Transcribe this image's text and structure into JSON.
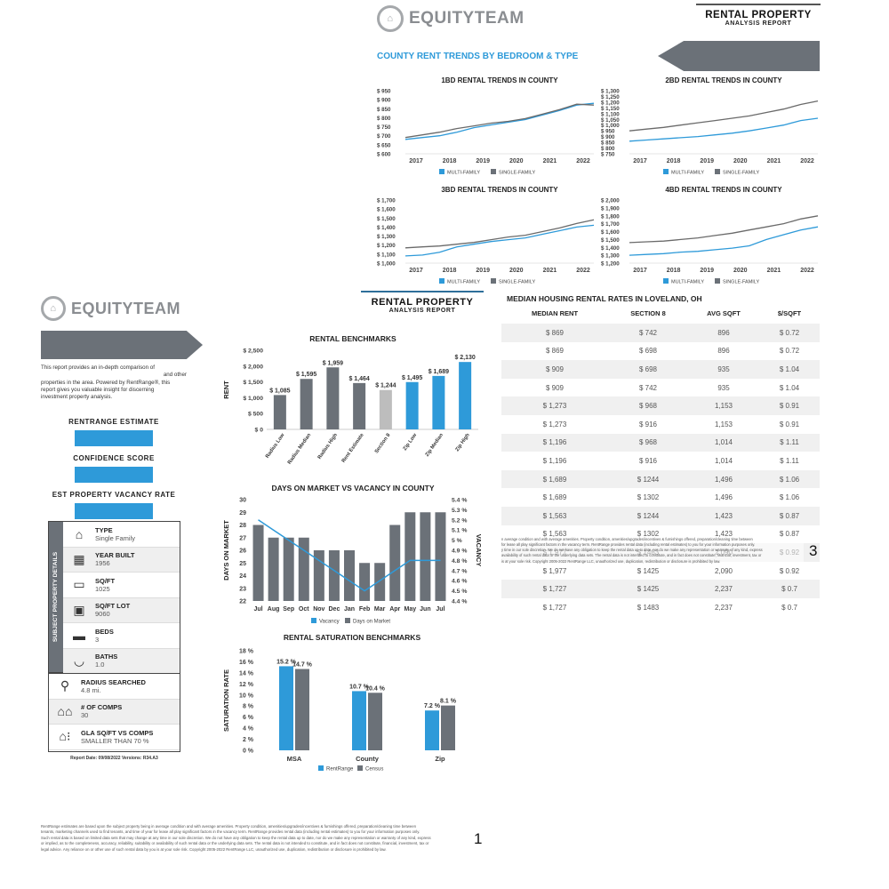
{
  "page1": {
    "logo_text": "EQUITYTEAM",
    "title": "RENTAL PROPERTY",
    "subtitle": "ANALYSIS REPORT",
    "intro": "This report provides an in-depth comparison of and other properties in the area. Powered by RentRange®, this report gives you valuable insight for discerning investment property analysis.",
    "intro_line1": "This report provides an in-depth comparison of",
    "intro_line2": "and other",
    "intro_line3": "properties in the area. Powered by RentRange®, this",
    "intro_line4": "report gives you valuable insight for discerning",
    "intro_line5": "investment property analysis.",
    "rentrange_label": "RENTRANGE ESTIMATE",
    "confidence_label": "CONFIDENCE SCORE",
    "vacancy_label": "EST PROPERTY VACANCY RATE",
    "details_side_label": "SUBJECT PROPERTY DETAILS",
    "details": [
      {
        "icon": "house-icon",
        "label": "TYPE",
        "value": "Single Family"
      },
      {
        "icon": "calendar-icon",
        "label": "YEAR BUILT",
        "value": "1956"
      },
      {
        "icon": "floorplan-icon",
        "label": "SQ/FT",
        "value": "1025"
      },
      {
        "icon": "lot-icon",
        "label": "SQ/FT LOT",
        "value": "9060"
      },
      {
        "icon": "bed-icon",
        "label": "BEDS",
        "value": "3"
      },
      {
        "icon": "bathtub-icon",
        "label": "BATHS",
        "value": "1.0"
      }
    ],
    "extra": [
      {
        "icon": "magnifier-icon",
        "label": "RADIUS SEARCHED",
        "value": "4.8 mi."
      },
      {
        "icon": "houses-icon",
        "label": "# OF COMPS",
        "value": "30"
      },
      {
        "icon": "gla-compare-icon",
        "label": "GLA SQ/FT VS COMPS",
        "value": "SMALLER THAN 70 %"
      }
    ],
    "report_date": "Report Date: 09/08/2022 Versions: R34.A3",
    "page_number": "1",
    "disclaimer_line1": "RentRange estimates are based upon the subject property being in average condition and with average amenities. Property condition, amenities/upgrades/incentives & furnishings offered, preparation/cleaning time between",
    "disclaimer_line2": "tenants, marketing channels used to find tenants, and time of year for lease all play significant factors in the vacancy term. RentRange provides rental data (including rental estimates) to you for your information purposes only.",
    "disclaimer_line3": "Such rental data is based on limited data sets that may change at any time in our sole discretion. We do not have any obligation to keep the rental data up to date, nor do we make any representation or warranty of any kind, express",
    "disclaimer_line4": "or implied, as to the completeness, accuracy, reliability, suitability or availability of such rental data or the underlying data sets. The rental data is not intended to constitute, and in fact does not constitute, financial, investment, tax or",
    "disclaimer_line5": "legal advice. Any reliance on or other use of such rental data by you is at your sole risk. Copyright 2005-2022 RentRange LLC, unauthorized use, duplication, redistribution or disclosure is prohibited by law."
  },
  "page2": {
    "title": "RENTAL PROPERTY",
    "subtitle": "ANALYSIS REPORT"
  },
  "page3": {
    "logo_text": "EQUITYTEAM",
    "title": "RENTAL PROPERTY",
    "subtitle": "ANALYSIS REPORT",
    "section_title": "COUNTY RENT TRENDS BY BEDROOM & TYPE",
    "median_title": "MEDIAN HOUSING RENTAL RATES IN LOVELAND, OH",
    "median_headers": [
      "MEDIAN RENT",
      "SECTION 8",
      "AVG SQFT",
      "$/SQFT"
    ],
    "median_rows": [
      [
        "$ 869",
        "$ 742",
        "896",
        "$ 0.72"
      ],
      [
        "$ 869",
        "$ 698",
        "896",
        "$ 0.72"
      ],
      [
        "$ 909",
        "$ 698",
        "935",
        "$ 1.04"
      ],
      [
        "$ 909",
        "$ 742",
        "935",
        "$ 1.04"
      ],
      [
        "$ 1,273",
        "$ 968",
        "1,153",
        "$ 0.91"
      ],
      [
        "$ 1,273",
        "$ 916",
        "1,153",
        "$ 0.91"
      ],
      [
        "$ 1,196",
        "$ 968",
        "1,014",
        "$ 1.11"
      ],
      [
        "$ 1,196",
        "$ 916",
        "1,014",
        "$ 1.11"
      ],
      [
        "$ 1,689",
        "$ 1244",
        "1,496",
        "$ 1.06"
      ],
      [
        "$ 1,689",
        "$ 1302",
        "1,496",
        "$ 1.06"
      ],
      [
        "$ 1,563",
        "$ 1244",
        "1,423",
        "$ 0.87"
      ],
      [
        "$ 1,563",
        "$ 1302",
        "1,423",
        "$ 0.87"
      ],
      [
        "$ 1,977",
        "$ 1483",
        "2,090",
        "$ 0.92"
      ],
      [
        "$ 1,977",
        "$ 1425",
        "2,090",
        "$ 0.92"
      ],
      [
        "$ 1,727",
        "$ 1425",
        "2,237",
        "$ 0.7"
      ],
      [
        "$ 1,727",
        "$ 1483",
        "2,237",
        "$ 0.7"
      ]
    ],
    "page_number": "3",
    "overlap_line1": "n average condition and with average amenities. Property condition, amenities/upgrades/incentives & furnishings offered, preparation/cleaning time between",
    "overlap_line2": "for lease all play significant factors in the vacancy term. RentRange provides rental data (including rental estimates) to you for your information purposes only.",
    "overlap_line3": "y time in our sole discretion. We do not have any obligation to keep the rental data up to date, nor do we make any representation or warranty of any kind, express",
    "overlap_line4": "availability of such rental data or the underlying data sets. The rental data is not intended to constitute, and in fact does not constitute, financial, investment, tax or",
    "overlap_line5": "is at your sole risk. Copyright 2005-2022 RentRange LLC, unauthorized use, duplication, redistribution or disclosure is prohibited by law."
  },
  "colors": {
    "blue": "#2e9ad9",
    "gray": "#6b7178",
    "light_gray": "#bdbdbd",
    "dark_line": "#6a6a6a"
  },
  "chart_data": [
    {
      "type": "line",
      "title": "1BD RENTAL TRENDS IN COUNTY",
      "x_ticks": [
        "2017",
        "2018",
        "2019",
        "2020",
        "2021",
        "2022"
      ],
      "y_ticks": [
        "$ 950",
        "$ 900",
        "$ 850",
        "$ 800",
        "$ 750",
        "$ 700",
        "$ 650",
        "$ 600"
      ],
      "ylim": [
        600,
        950
      ],
      "series": [
        {
          "name": "MULTI-FAMILY",
          "values": [
            680,
            690,
            700,
            720,
            745,
            760,
            775,
            790,
            815,
            840,
            870,
            880
          ]
        },
        {
          "name": "SINGLE-FAMILY",
          "values": [
            690,
            705,
            720,
            740,
            755,
            770,
            780,
            795,
            820,
            845,
            875,
            870
          ]
        }
      ]
    },
    {
      "type": "line",
      "title": "2BD RENTAL TRENDS IN COUNTY",
      "x_ticks": [
        "2017",
        "2018",
        "2019",
        "2020",
        "2021",
        "2022"
      ],
      "y_ticks": [
        "$ 1,300",
        "$ 1,250",
        "$ 1,200",
        "$ 1,150",
        "$ 1,100",
        "$ 1,050",
        "$ 1,000",
        "$ 950",
        "$ 900",
        "$ 850",
        "$ 800",
        "$ 750"
      ],
      "ylim": [
        750,
        1300
      ],
      "series": [
        {
          "name": "MULTI-FAMILY",
          "values": [
            860,
            870,
            880,
            890,
            900,
            915,
            930,
            950,
            975,
            1000,
            1040,
            1060
          ]
        },
        {
          "name": "SINGLE-FAMILY",
          "values": [
            950,
            965,
            980,
            1000,
            1020,
            1040,
            1060,
            1080,
            1110,
            1140,
            1180,
            1210
          ]
        }
      ]
    },
    {
      "type": "line",
      "title": "3BD RENTAL TRENDS IN COUNTY",
      "x_ticks": [
        "2017",
        "2018",
        "2019",
        "2020",
        "2021",
        "2022"
      ],
      "y_ticks": [
        "$ 1,700",
        "$ 1,600",
        "$ 1,500",
        "$ 1,400",
        "$ 1,300",
        "$ 1,200",
        "$ 1,100",
        "$ 1,000"
      ],
      "ylim": [
        1000,
        1700
      ],
      "series": [
        {
          "name": "MULTI-FAMILY",
          "values": [
            1080,
            1090,
            1120,
            1180,
            1210,
            1240,
            1260,
            1280,
            1320,
            1360,
            1400,
            1420
          ]
        },
        {
          "name": "SINGLE-FAMILY",
          "values": [
            1170,
            1180,
            1190,
            1210,
            1230,
            1260,
            1290,
            1310,
            1350,
            1390,
            1440,
            1480
          ]
        }
      ]
    },
    {
      "type": "line",
      "title": "4BD RENTAL TRENDS IN COUNTY",
      "x_ticks": [
        "2017",
        "2018",
        "2019",
        "2020",
        "2021",
        "2022"
      ],
      "y_ticks": [
        "$ 2,000",
        "$ 1,900",
        "$ 1,800",
        "$ 1,700",
        "$ 1,600",
        "$ 1,500",
        "$ 1,400",
        "$ 1,300",
        "$ 1,200"
      ],
      "ylim": [
        1200,
        2000
      ],
      "series": [
        {
          "name": "MULTI-FAMILY",
          "values": [
            1300,
            1310,
            1320,
            1340,
            1350,
            1370,
            1390,
            1420,
            1500,
            1560,
            1620,
            1660
          ]
        },
        {
          "name": "SINGLE-FAMILY",
          "values": [
            1460,
            1470,
            1480,
            1500,
            1520,
            1550,
            1580,
            1620,
            1660,
            1700,
            1760,
            1800
          ]
        }
      ]
    },
    {
      "type": "bar",
      "title": "RENTAL BENCHMARKS",
      "ylabel": "RENT",
      "ylim": [
        0,
        2500
      ],
      "y_ticks": [
        "$ 2,500",
        "$ 2,000",
        "$ 1,500",
        "$ 1,000",
        "$ 500",
        "$ 0"
      ],
      "categories": [
        "Radius Low",
        "Radius Median",
        "Radius High",
        "Rent Estimate",
        "Section 8",
        "Zip Low",
        "Zip Median",
        "Zip High"
      ],
      "values": [
        1085,
        1595,
        1959,
        1464,
        1244,
        1495,
        1689,
        2130
      ],
      "labels": [
        "$ 1,085",
        "$ 1,595",
        "$ 1,959",
        "$ 1,464",
        "$ 1,244",
        "$ 1,495",
        "$ 1,689",
        "$ 2,130"
      ],
      "bar_colors": [
        "#6b7178",
        "#6b7178",
        "#6b7178",
        "#6b7178",
        "#bdbdbd",
        "#2e9ad9",
        "#2e9ad9",
        "#2e9ad9"
      ]
    },
    {
      "type": "bar",
      "title": "DAYS ON MARKET VS VACANCY IN COUNTY",
      "ylabel": "DAYS ON MARKET",
      "y2label": "VACANCY",
      "categories": [
        "Jul",
        "Aug",
        "Sep",
        "Oct",
        "Nov",
        "Dec",
        "Jan",
        "Feb",
        "Mar",
        "Apr",
        "May",
        "Jun",
        "Jul"
      ],
      "ylim": [
        22,
        30
      ],
      "y_ticks": [
        "30",
        "29",
        "28",
        "27",
        "26",
        "25",
        "24",
        "23",
        "22"
      ],
      "y2lim": [
        4.4,
        5.4
      ],
      "y2_ticks": [
        "5.4 %",
        "5.3 %",
        "5.2 %",
        "5.1 %",
        "5 %",
        "4.9 %",
        "4.8 %",
        "4.7 %",
        "4.6 %",
        "4.5 %",
        "4.4 %"
      ],
      "series": [
        {
          "name": "Days on Market",
          "values": [
            28,
            27,
            27,
            27,
            26,
            26,
            26,
            25,
            25,
            28,
            29,
            29,
            29
          ]
        },
        {
          "name": "Vacancy",
          "values": [
            5.2,
            5.1,
            5.0,
            4.9,
            4.8,
            4.7,
            4.6,
            4.5,
            4.6,
            4.7,
            4.8,
            4.8,
            4.8
          ]
        }
      ]
    },
    {
      "type": "bar",
      "title": "RENTAL SATURATION BENCHMARKS",
      "ylabel": "SATURATION RATE",
      "ylim": [
        0,
        18
      ],
      "y_ticks": [
        "18 %",
        "16 %",
        "14 %",
        "12 %",
        "10 %",
        "8 %",
        "6 %",
        "4 %",
        "2 %",
        "0 %"
      ],
      "categories": [
        "MSA",
        "County",
        "Zip"
      ],
      "series": [
        {
          "name": "RentRange",
          "values": [
            15.2,
            10.7,
            7.2
          ],
          "labels": [
            "15.2 %",
            "10.7 %",
            "7.2 %"
          ]
        },
        {
          "name": "Census",
          "values": [
            14.7,
            10.4,
            8.1
          ],
          "labels": [
            "14.7 %",
            "10.4 %",
            "8.1 %"
          ]
        }
      ]
    }
  ]
}
